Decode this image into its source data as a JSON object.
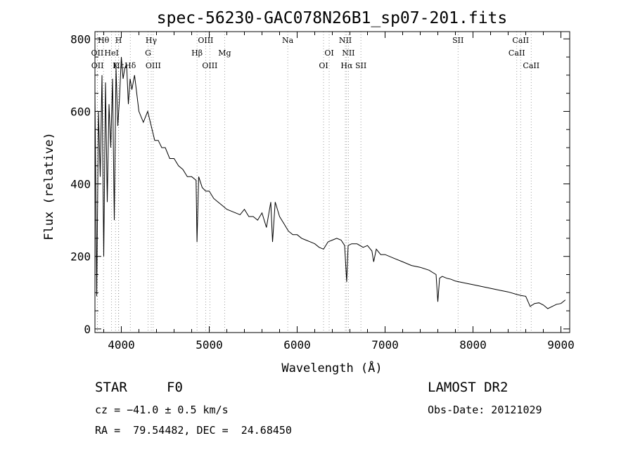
{
  "chart_data": {
    "type": "line",
    "title": "spec-56230-GAC078N26B1_sp07-201.fits",
    "xlabel": "Wavelength (Å)",
    "ylabel": "Flux (relative)",
    "xlim": [
      3700,
      9100
    ],
    "ylim": [
      -10,
      820
    ],
    "xticks": [
      4000,
      5000,
      6000,
      7000,
      8000,
      9000
    ],
    "yticks": [
      0,
      200,
      400,
      600,
      800
    ],
    "grid": false,
    "series": [
      {
        "x": [
          3700,
          3720,
          3740,
          3760,
          3780,
          3800,
          3820,
          3840,
          3860,
          3880,
          3900,
          3920,
          3940,
          3960,
          3980,
          4000,
          4020,
          4040,
          4060,
          4080,
          4100,
          4120,
          4150,
          4200,
          4250,
          4300,
          4340,
          4380,
          4420,
          4460,
          4500,
          4550,
          4600,
          4650,
          4700,
          4750,
          4800,
          4850,
          4861,
          4880,
          4920,
          4960,
          5000,
          5050,
          5100,
          5150,
          5200,
          5250,
          5300,
          5350,
          5400,
          5450,
          5500,
          5550,
          5600,
          5650,
          5700,
          5720,
          5750,
          5800,
          5850,
          5900,
          5950,
          6000,
          6050,
          6100,
          6150,
          6200,
          6250,
          6300,
          6350,
          6400,
          6450,
          6500,
          6540,
          6563,
          6580,
          6620,
          6680,
          6750,
          6800,
          6850,
          6870,
          6900,
          6950,
          7000,
          7100,
          7200,
          7300,
          7400,
          7500,
          7580,
          7600,
          7620,
          7650,
          7700,
          7750,
          7800,
          7900,
          8000,
          8100,
          8200,
          8300,
          8400,
          8500,
          8550,
          8600,
          8650,
          8700,
          8750,
          8800,
          8850,
          8900,
          8950,
          9000,
          9050
        ],
        "y": [
          650,
          90,
          600,
          420,
          700,
          200,
          680,
          350,
          620,
          500,
          690,
          300,
          720,
          560,
          640,
          750,
          690,
          720,
          730,
          620,
          690,
          660,
          700,
          600,
          570,
          600,
          560,
          520,
          520,
          500,
          500,
          470,
          470,
          450,
          440,
          420,
          420,
          410,
          240,
          420,
          390,
          380,
          380,
          360,
          350,
          340,
          330,
          325,
          320,
          315,
          330,
          310,
          310,
          300,
          320,
          280,
          350,
          240,
          350,
          310,
          290,
          270,
          260,
          260,
          250,
          245,
          240,
          235,
          225,
          220,
          240,
          245,
          250,
          245,
          230,
          130,
          230,
          235,
          235,
          225,
          230,
          215,
          185,
          220,
          205,
          205,
          195,
          185,
          175,
          170,
          162,
          150,
          75,
          140,
          145,
          140,
          137,
          132,
          127,
          122,
          117,
          112,
          107,
          102,
          95,
          92,
          90,
          62,
          70,
          72,
          66,
          56,
          62,
          68,
          70,
          80
        ]
      }
    ],
    "line_markers": [
      {
        "label": "Hθ",
        "wavelength": 3797,
        "row": 0
      },
      {
        "label": "OII",
        "wavelength": 3727,
        "row": 1
      },
      {
        "label": "HeI",
        "wavelength": 3889,
        "row": 1
      },
      {
        "label": "OII",
        "wavelength": 3729,
        "row": 2
      },
      {
        "label": "Hε",
        "wavelength": 3970,
        "row": 2
      },
      {
        "label": "H",
        "wavelength": 3968,
        "row": 0
      },
      {
        "label": "K",
        "wavelength": 3934,
        "row": 2
      },
      {
        "label": "Hδ",
        "wavelength": 4102,
        "row": 2
      },
      {
        "label": "Hγ",
        "wavelength": 4340,
        "row": 0
      },
      {
        "label": "G",
        "wavelength": 4304,
        "row": 1
      },
      {
        "label": "OIII",
        "wavelength": 4363,
        "row": 2
      },
      {
        "label": "OIII",
        "wavelength": 4959,
        "row": 0
      },
      {
        "label": "Hβ",
        "wavelength": 4861,
        "row": 1
      },
      {
        "label": "Mg",
        "wavelength": 5175,
        "row": 1
      },
      {
        "label": "OIII",
        "wavelength": 5007,
        "row": 2
      },
      {
        "label": "Na",
        "wavelength": 5893,
        "row": 0
      },
      {
        "label": "NII",
        "wavelength": 6548,
        "row": 0
      },
      {
        "label": "OI",
        "wavelength": 6364,
        "row": 1
      },
      {
        "label": "NII",
        "wavelength": 6583,
        "row": 1
      },
      {
        "label": "OI",
        "wavelength": 6300,
        "row": 2
      },
      {
        "label": "Hα",
        "wavelength": 6563,
        "row": 2
      },
      {
        "label": "SII",
        "wavelength": 6725,
        "row": 2
      },
      {
        "label": "SII",
        "wavelength": 7830,
        "row": 0
      },
      {
        "label": "CaII",
        "wavelength": 8542,
        "row": 0
      },
      {
        "label": "CaII",
        "wavelength": 8498,
        "row": 1
      },
      {
        "label": "CaII",
        "wavelength": 8662,
        "row": 2
      }
    ]
  },
  "info": {
    "object_class": "STAR",
    "subclass": "F0",
    "survey": "LAMOST DR2",
    "redshift": "cz = −41.0 ± 0.5 km/s",
    "obs_date": "Obs-Date: 20121029",
    "coords": "RA =  79.54482, DEC =  24.68450"
  }
}
